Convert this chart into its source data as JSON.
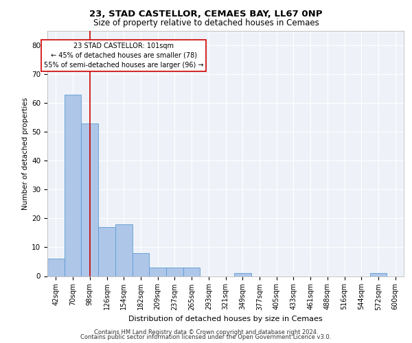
{
  "title1": "23, STAD CASTELLOR, CEMAES BAY, LL67 0NP",
  "title2": "Size of property relative to detached houses in Cemaes",
  "xlabel": "Distribution of detached houses by size in Cemaes",
  "ylabel": "Number of detached properties",
  "bins": [
    "42sqm",
    "70sqm",
    "98sqm",
    "126sqm",
    "154sqm",
    "182sqm",
    "209sqm",
    "237sqm",
    "265sqm",
    "293sqm",
    "321sqm",
    "349sqm",
    "377sqm",
    "405sqm",
    "433sqm",
    "461sqm",
    "488sqm",
    "516sqm",
    "544sqm",
    "572sqm",
    "600sqm"
  ],
  "values": [
    6,
    63,
    53,
    17,
    18,
    8,
    3,
    3,
    3,
    0,
    0,
    1,
    0,
    0,
    0,
    0,
    0,
    0,
    0,
    1,
    0
  ],
  "bar_color": "#aec6e8",
  "bar_edge_color": "#5b9bd5",
  "vline_x_index": 2,
  "vline_color": "#cc0000",
  "annotation_line1": "23 STAD CASTELLOR: 101sqm",
  "annotation_line2": "← 45% of detached houses are smaller (78)",
  "annotation_line3": "55% of semi-detached houses are larger (96) →",
  "annotation_box_color": "#ffffff",
  "annotation_box_edge": "#cc0000",
  "ylim": [
    0,
    85
  ],
  "yticks": [
    0,
    10,
    20,
    30,
    40,
    50,
    60,
    70,
    80
  ],
  "footer1": "Contains HM Land Registry data © Crown copyright and database right 2024.",
  "footer2": "Contains public sector information licensed under the Open Government Licence v3.0.",
  "plot_bg_color": "#eef2f8",
  "title1_fontsize": 9.5,
  "title2_fontsize": 8.5,
  "ylabel_fontsize": 7.5,
  "xlabel_fontsize": 8,
  "tick_fontsize": 7,
  "ann_fontsize": 7,
  "footer_fontsize": 6
}
